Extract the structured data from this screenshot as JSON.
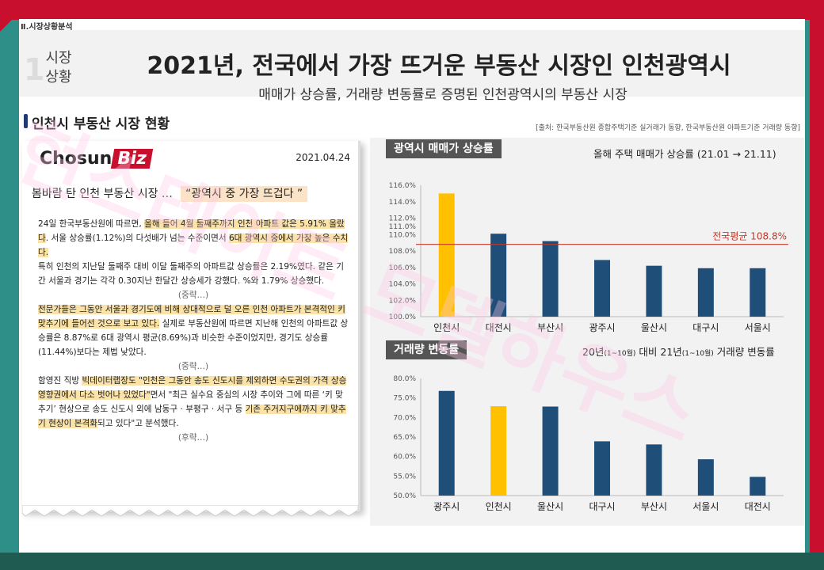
{
  "section_label": "Ⅱ.시장상황분석",
  "section_number": "1",
  "section_title": "시장 상황",
  "main_title": "2021년, 전국에서 가장 뜨거운 부동산 시장인 인천광역시",
  "sub_title": "매매가 상승률, 거래량 변동률로 증명된 인천광역시의 부동산 시장",
  "news_section_title": "인천시 부동산 시장 현황",
  "source": "[출처: 한국부동산원 종합주택기준 실거래가 동향, 한국부동산원 아파트기준 거래량 동향]",
  "news": {
    "logo_main": "Chosun",
    "logo_biz": "Biz",
    "date": "2021.04.24",
    "headline": "봄바람 탄 인천 부동산 시장 …",
    "headline_quote": "“광역시 중 가장 뜨겁다 ”",
    "p1_a": "24일 한국부동산원에 따르면, ",
    "p1_b": "올해 들어 4월 둘째주까지 인천 아파트 값은 5.91% 올랐다",
    "p1_c": ". 서울 상승률(1.12%)의 다섯배가 넘는 수준이면서 ",
    "p1_d": "6대 광역시 중에서 가장 높은 수치다.",
    "p1_e": "특히 인천의 지난달 둘째주 대비 이달 둘째주의 아파트값 상승률은 2.19%였다. 같은 기간 서울과 경기는 각각 0.30지난 한달간 상승세가 강했다. %와 1.79% 상승했다.",
    "etc1": "(중략…)",
    "p2_a": "전문가들은 그동안 서울과 경기도에 비해 상대적으로 덜 오른 인천 아파트가 본격적인 키 맞추기에 들어선 것으로 보고 있다.",
    "p2_b": " 실제로 부동산원에 따르면 지난해 인천의 아파트값 상승률은 8.87%로 6대 광역시 평균(8.69%)과 비슷한 수준이었지만, 경기도 상승률(11.44%)보다는 제법 낮았다.",
    "etc2": "(중략…)",
    "p3_a": "함영진 직방 ",
    "p3_b": "빅데이터랩장도 \"인천은 그동안 송도 신도시를 제외하면 수도권의 가격 상승 영향권에서 다소 벗어나 있었다\"",
    "p3_c": "면서 \"최근 실수요 중심의 시장 추이와 그에 따른 ‘키 맞추기’ 현상으로 송도 신도시 외에 남동구 · 부평구 · 서구 등 ",
    "p3_d": "기존 주거지구에까지 키 맞추기 현상이 본격화",
    "p3_e": "되고 있다\"고 분석했다.",
    "etc3": "(후략…)"
  },
  "chart1_header": {
    "tag": "광역시 매매가 상승률",
    "note": "올해 주택 매매가 상승률 (21.01 → 21.11)"
  },
  "chart2_header": {
    "tag": "거래량 변동률",
    "note_a": "20년",
    "note_b": "(1~10월)",
    "note_c": " 대비 21년",
    "note_d": "(1~10월)",
    "note_e": " 거래량 변동률"
  },
  "watermark": "현스테이트 모델하우스",
  "colors": {
    "navy": "#1f4e79",
    "highlight": "#ffc000",
    "avg_line": "#c0392b"
  },
  "chart_data": [
    {
      "type": "bar",
      "title": "광역시 매매가 상승률",
      "categories": [
        "인천시",
        "대전시",
        "부산시",
        "광주시",
        "울산시",
        "대구시",
        "서울시"
      ],
      "values": [
        115.0,
        110.1,
        109.2,
        106.9,
        106.2,
        105.9,
        105.9
      ],
      "highlight_index": 0,
      "ylim": [
        100.0,
        116.0
      ],
      "yticks": [
        "100.0%",
        "102.0%",
        "104.0%",
        "106.0%",
        "108.0%",
        "110.0%",
        "112.0%",
        "114.0%",
        "116.0%"
      ],
      "yaxis_note": "111.0%",
      "reference_line": {
        "value": 108.8,
        "label": "전국평균 108.8%"
      },
      "grid": false
    },
    {
      "type": "bar",
      "title": "거래량 변동률",
      "categories": [
        "광주시",
        "인천시",
        "울산시",
        "대구시",
        "부산시",
        "서울시",
        "대전시"
      ],
      "values": [
        76.8,
        72.9,
        72.8,
        63.9,
        63.1,
        59.3,
        54.8
      ],
      "highlight_index": 1,
      "ylim": [
        50.0,
        80.0
      ],
      "yticks": [
        "50.0%",
        "55.0%",
        "60.0%",
        "65.0%",
        "70.0%",
        "75.0%",
        "80.0%"
      ],
      "grid": false
    }
  ]
}
